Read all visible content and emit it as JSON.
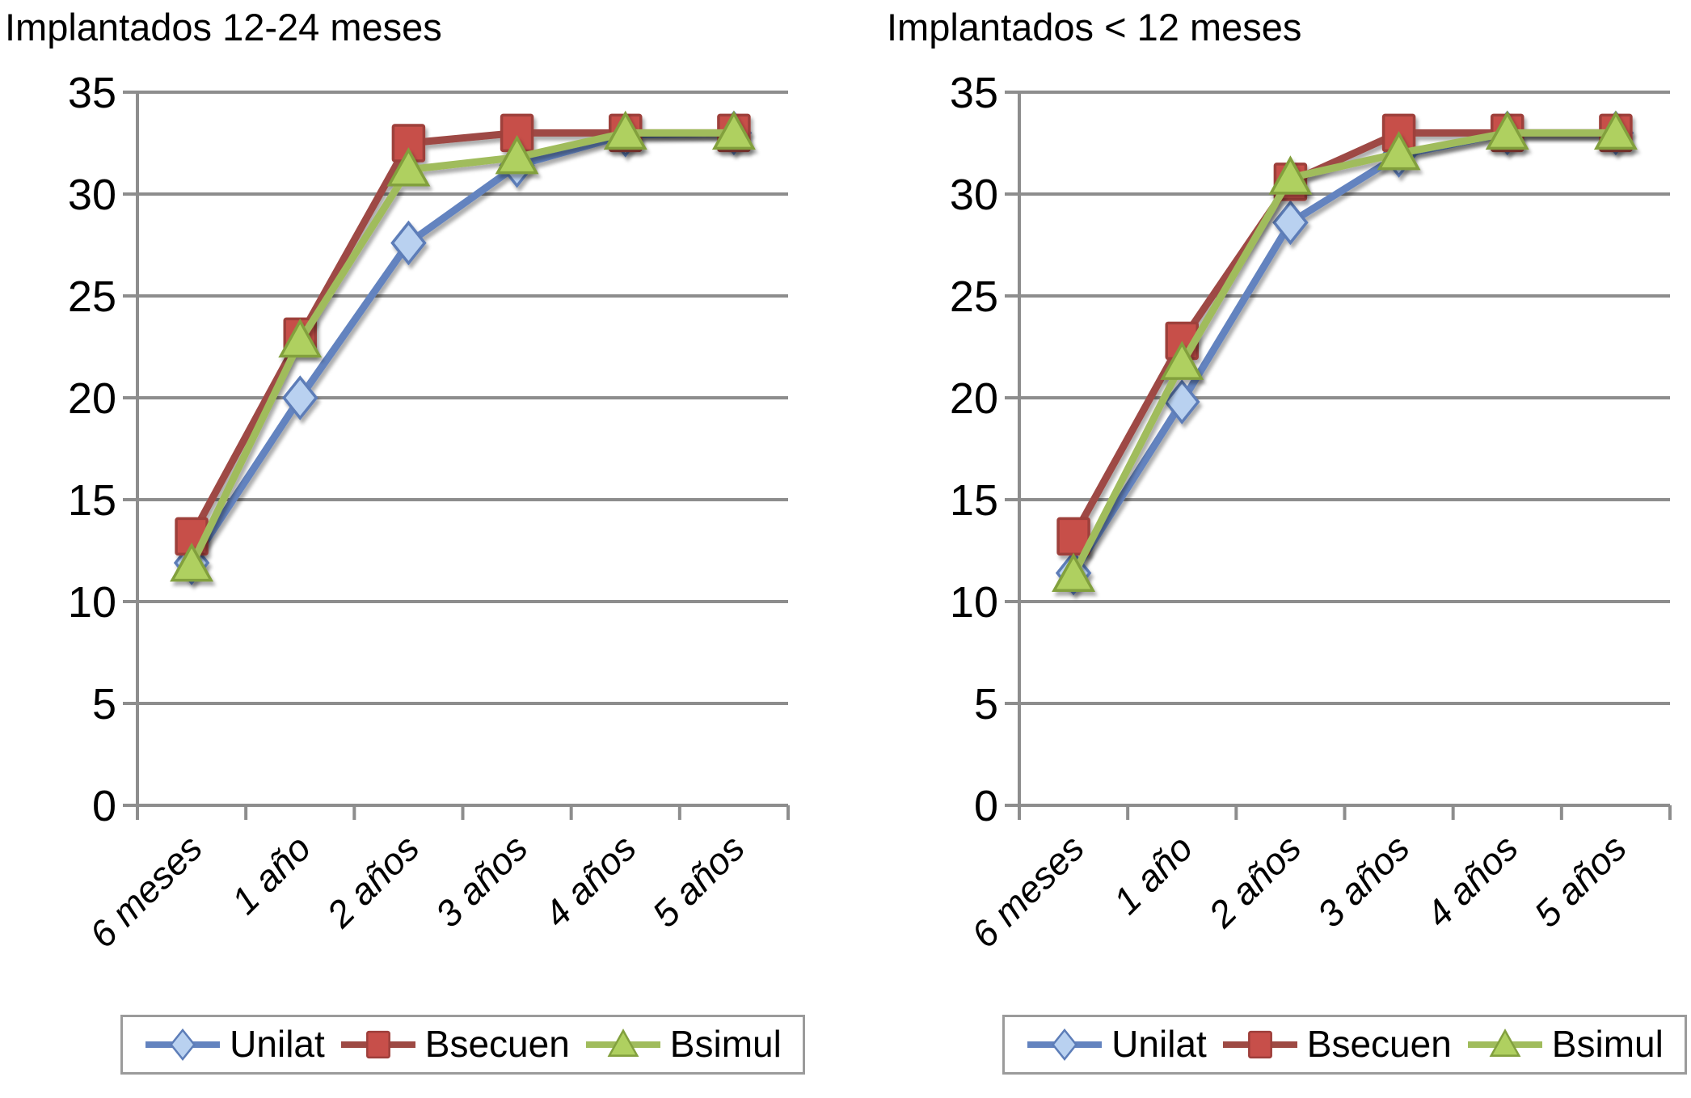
{
  "styles": {
    "background": "#FFFFFF",
    "grid_color": "#8D8D8D",
    "text_color": "#000000",
    "legend_border_color": "#9B9B9B"
  },
  "chart_data": [
    {
      "type": "line",
      "title": "Implantados 12-24 meses",
      "categories": [
        "6 meses",
        "1 año",
        "2 años",
        "3 años",
        "4 años",
        "5 años"
      ],
      "xlabel": "",
      "ylabel": "",
      "ylim": [
        0,
        35
      ],
      "yticks": [
        0,
        5,
        10,
        15,
        20,
        25,
        30,
        35
      ],
      "grid": true,
      "legend_position": "bottom",
      "series": [
        {
          "name": "Unilat",
          "marker": "diamond",
          "line_color": "#6383BF",
          "marker_fill": "#B9D1F0",
          "marker_stroke": "#5D7DB8",
          "values": [
            11.9,
            20,
            27.6,
            31.4,
            32.9,
            33
          ]
        },
        {
          "name": "Bsecuen",
          "marker": "square",
          "line_color": "#9E4A44",
          "marker_fill": "#C74F4A",
          "marker_stroke": "#9E3F3B",
          "values": [
            13.2,
            23,
            32.5,
            33,
            33,
            33
          ]
        },
        {
          "name": "Bsimul",
          "marker": "triangle",
          "line_color": "#A0BC5C",
          "marker_fill": "#AFD060",
          "marker_stroke": "#82A03E",
          "values": [
            11.8,
            22.8,
            31.2,
            31.8,
            33,
            33
          ]
        }
      ]
    },
    {
      "type": "line",
      "title": "Implantados < 12 meses",
      "categories": [
        "6 meses",
        "1 año",
        "2 años",
        "3 años",
        "4 años",
        "5 años"
      ],
      "xlabel": "",
      "ylabel": "",
      "ylim": [
        0,
        35
      ],
      "yticks": [
        0,
        5,
        10,
        15,
        20,
        25,
        30,
        35
      ],
      "grid": true,
      "legend_position": "bottom",
      "series": [
        {
          "name": "Unilat",
          "marker": "diamond",
          "line_color": "#6383BF",
          "marker_fill": "#B9D1F0",
          "marker_stroke": "#5D7DB8",
          "values": [
            11.4,
            19.8,
            28.6,
            31.9,
            33,
            33
          ]
        },
        {
          "name": "Bsecuen",
          "marker": "square",
          "line_color": "#9E4A44",
          "marker_fill": "#C74F4A",
          "marker_stroke": "#9E3F3B",
          "values": [
            13.2,
            22.8,
            30.6,
            33,
            33,
            33
          ]
        },
        {
          "name": "Bsimul",
          "marker": "triangle",
          "line_color": "#A0BC5C",
          "marker_fill": "#AFD060",
          "marker_stroke": "#82A03E",
          "values": [
            11.3,
            21.7,
            30.8,
            32,
            33,
            33
          ]
        }
      ]
    }
  ]
}
